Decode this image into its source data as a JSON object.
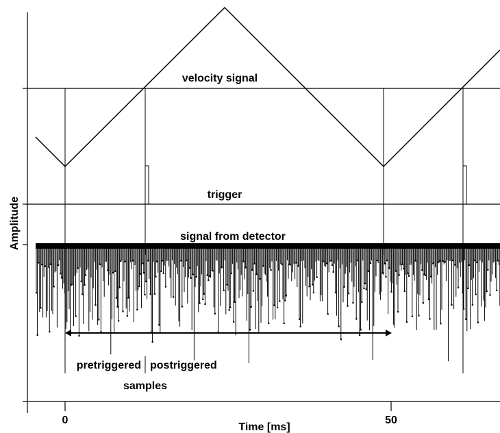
{
  "figure": {
    "y_axis_label": "Amplitude",
    "x_axis_label": "Time [ms]",
    "x_ticks": [
      "0",
      "50"
    ],
    "labels": {
      "velocity": "velocity signal",
      "trigger": "trigger",
      "detector": "signal from detector",
      "pretriggered": "pretriggered",
      "postriggered": "postriggered",
      "samples": "samples"
    }
  }
}
